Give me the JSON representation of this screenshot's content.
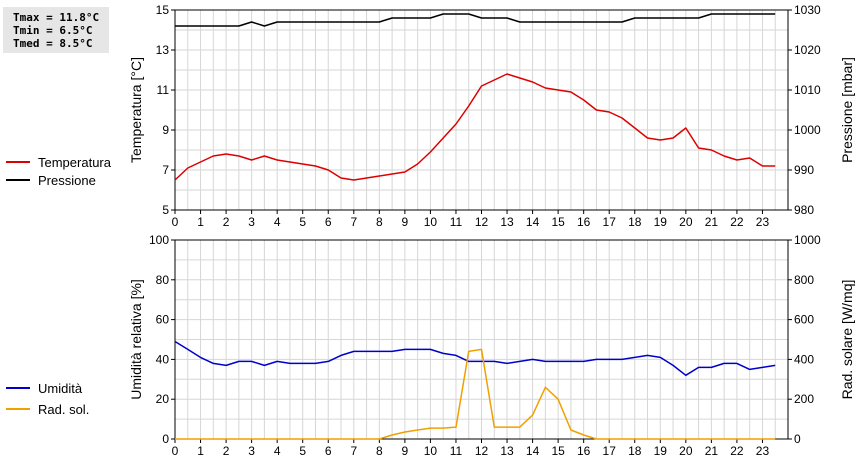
{
  "stats": [
    {
      "label": "Tmax",
      "value": "11.8°C"
    },
    {
      "label": "Tmin",
      "value": "6.5°C"
    },
    {
      "label": "Tmed",
      "value": "8.5°C"
    }
  ],
  "chart_data": [
    {
      "type": "line",
      "xlabel": "",
      "xlim": [
        0,
        24
      ],
      "x_ticks": [
        0,
        1,
        2,
        3,
        4,
        5,
        6,
        7,
        8,
        9,
        10,
        11,
        12,
        13,
        14,
        15,
        16,
        17,
        18,
        19,
        20,
        21,
        22,
        23
      ],
      "grid": true,
      "legend_position": "left",
      "y_left": {
        "label": "Temperatura [°C]",
        "lim": [
          5,
          15
        ],
        "ticks": [
          5,
          7,
          9,
          11,
          13,
          15
        ]
      },
      "y_right": {
        "label": "Pressione [mbar]",
        "lim": [
          980,
          1030
        ],
        "ticks": [
          980,
          990,
          1000,
          1010,
          1020,
          1030
        ]
      },
      "series": [
        {
          "name": "Temperatura",
          "color": "#dd0000",
          "axis": "left",
          "x": [
            0,
            0.5,
            1,
            1.5,
            2,
            2.5,
            3,
            3.5,
            4,
            4.5,
            5,
            5.5,
            6,
            6.5,
            7,
            7.5,
            8,
            8.5,
            9,
            9.5,
            10,
            10.5,
            11,
            11.5,
            12,
            12.5,
            13,
            13.5,
            14,
            14.5,
            15,
            15.5,
            16,
            16.5,
            17,
            17.5,
            18,
            18.5,
            19,
            19.5,
            20,
            20.5,
            21,
            21.5,
            22,
            22.5,
            23,
            23.5
          ],
          "y": [
            6.5,
            7.1,
            7.4,
            7.7,
            7.8,
            7.7,
            7.5,
            7.7,
            7.5,
            7.4,
            7.3,
            7.2,
            7.0,
            6.6,
            6.5,
            6.6,
            6.7,
            6.8,
            6.9,
            7.3,
            7.9,
            8.6,
            9.3,
            10.2,
            11.2,
            11.5,
            11.8,
            11.6,
            11.4,
            11.1,
            11.0,
            10.9,
            10.5,
            10.0,
            9.9,
            9.6,
            9.1,
            8.6,
            8.5,
            8.6,
            9.1,
            8.1,
            8.0,
            7.7,
            7.5,
            7.6,
            7.2,
            7.2
          ]
        },
        {
          "name": "Pressione",
          "color": "#000000",
          "axis": "right",
          "x": [
            0,
            0.5,
            1,
            1.5,
            2,
            2.5,
            3,
            3.5,
            4,
            4.5,
            5,
            5.5,
            6,
            6.5,
            7,
            7.5,
            8,
            8.5,
            9,
            9.5,
            10,
            10.5,
            11,
            11.5,
            12,
            12.5,
            13,
            13.5,
            14,
            14.5,
            15,
            15.5,
            16,
            16.5,
            17,
            17.5,
            18,
            18.5,
            19,
            19.5,
            20,
            20.5,
            21,
            21.5,
            22,
            22.5,
            23,
            23.5
          ],
          "y": [
            1026,
            1026,
            1026,
            1026,
            1026,
            1026,
            1027,
            1026,
            1027,
            1027,
            1027,
            1027,
            1027,
            1027,
            1027,
            1027,
            1027,
            1028,
            1028,
            1028,
            1028,
            1029,
            1029,
            1029,
            1028,
            1028,
            1028,
            1027,
            1027,
            1027,
            1027,
            1027,
            1027,
            1027,
            1027,
            1027,
            1028,
            1028,
            1028,
            1028,
            1028,
            1028,
            1029,
            1029,
            1029,
            1029,
            1029,
            1029
          ]
        }
      ]
    },
    {
      "type": "line",
      "xlabel": "",
      "xlim": [
        0,
        24
      ],
      "x_ticks": [
        0,
        1,
        2,
        3,
        4,
        5,
        6,
        7,
        8,
        9,
        10,
        11,
        12,
        13,
        14,
        15,
        16,
        17,
        18,
        19,
        20,
        21,
        22,
        23
      ],
      "grid": true,
      "legend_position": "left",
      "y_left": {
        "label": "Umidità relativa [%]",
        "lim": [
          0,
          100
        ],
        "ticks": [
          0,
          20,
          40,
          60,
          80,
          100
        ]
      },
      "y_right": {
        "label": "Rad. solare [W/mq]",
        "lim": [
          0,
          1000
        ],
        "ticks": [
          0,
          200,
          400,
          600,
          800,
          1000
        ]
      },
      "series": [
        {
          "name": "Umidità",
          "color": "#0000cc",
          "axis": "left",
          "x": [
            0,
            0.5,
            1,
            1.5,
            2,
            2.5,
            3,
            3.5,
            4,
            4.5,
            5,
            5.5,
            6,
            6.5,
            7,
            7.5,
            8,
            8.5,
            9,
            9.5,
            10,
            10.5,
            11,
            11.5,
            12,
            12.5,
            13,
            13.5,
            14,
            14.5,
            15,
            15.5,
            16,
            16.5,
            17,
            17.5,
            18,
            18.5,
            19,
            19.5,
            20,
            20.5,
            21,
            21.5,
            22,
            22.5,
            23,
            23.5
          ],
          "y": [
            49,
            45,
            41,
            38,
            37,
            39,
            39,
            37,
            39,
            38,
            38,
            38,
            39,
            42,
            44,
            44,
            44,
            44,
            45,
            45,
            45,
            43,
            42,
            39,
            39,
            39,
            38,
            39,
            40,
            39,
            39,
            39,
            39,
            40,
            40,
            40,
            41,
            42,
            41,
            37,
            32,
            36,
            36,
            38,
            38,
            35,
            36,
            37
          ]
        },
        {
          "name": "Rad. sol.",
          "color": "#f0a000",
          "axis": "right",
          "x": [
            0,
            0.5,
            1,
            1.5,
            2,
            2.5,
            3,
            3.5,
            4,
            4.5,
            5,
            5.5,
            6,
            6.5,
            7,
            7.5,
            8,
            8.5,
            9,
            9.5,
            10,
            10.5,
            11,
            11.5,
            12,
            12.5,
            13,
            13.5,
            14,
            14.5,
            15,
            15.5,
            16,
            16.5,
            17,
            17.5,
            18,
            18.5,
            19,
            19.5,
            20,
            20.5,
            21,
            21.5,
            22,
            22.5,
            23,
            23.5
          ],
          "y": [
            0,
            0,
            0,
            0,
            0,
            0,
            0,
            0,
            0,
            0,
            0,
            0,
            0,
            0,
            0,
            0,
            0,
            20,
            35,
            45,
            55,
            55,
            60,
            440,
            450,
            60,
            60,
            60,
            120,
            260,
            200,
            45,
            20,
            0,
            0,
            0,
            0,
            0,
            0,
            0,
            0,
            0,
            0,
            0,
            0,
            0,
            0,
            0
          ]
        }
      ]
    }
  ]
}
